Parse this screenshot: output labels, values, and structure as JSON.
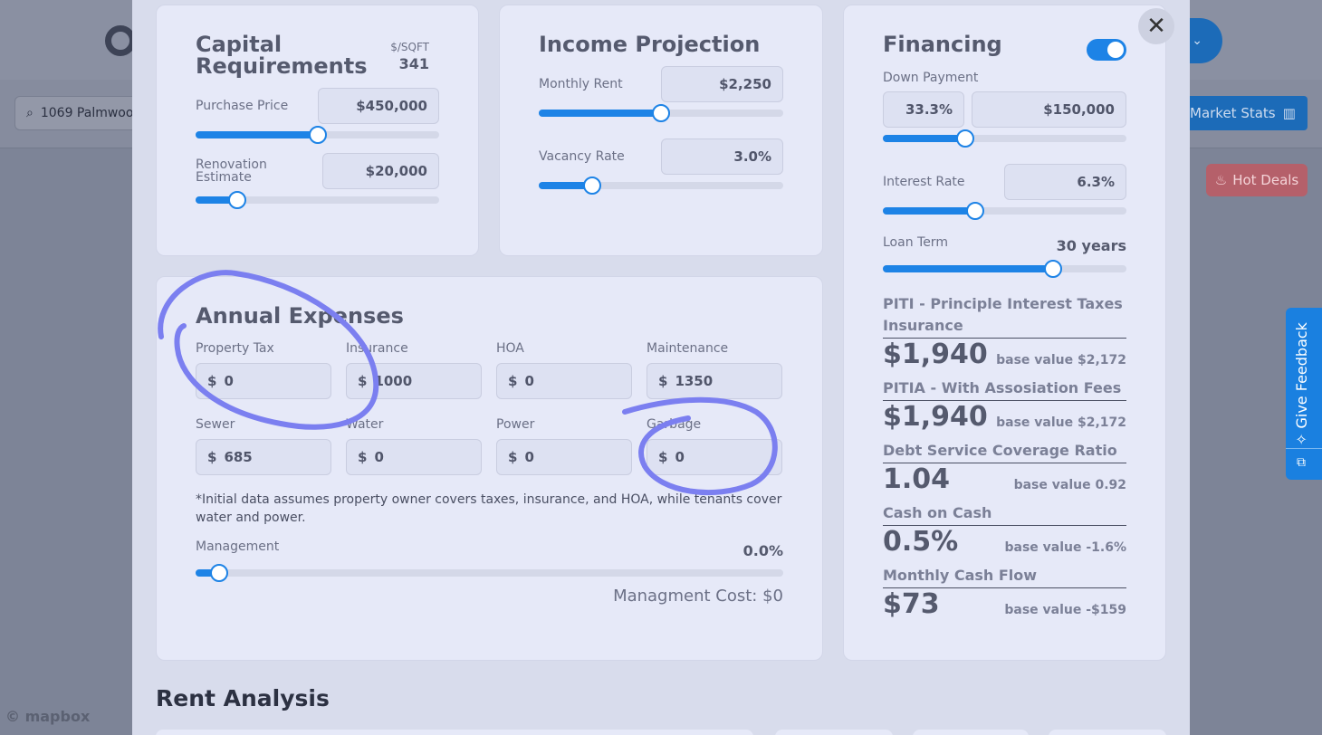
{
  "background": {
    "search_value": "1069 Palmwoo",
    "market_stats_label": "Market Stats",
    "hot_deals_label": "Hot Deals",
    "mapbox_label": "mapbox",
    "feedback_label": "Give Feedback"
  },
  "capital": {
    "title": "Capital Requirements",
    "sqft_label": "$/SQFT",
    "sqft_value": "341",
    "purchase_label": "Purchase Price",
    "purchase_value": "$450,000",
    "purchase_slider": 0.5,
    "renovation_label": "Renovation Estimate",
    "renovation_value": "$20,000",
    "renovation_slider": 0.17
  },
  "income": {
    "title": "Income Projection",
    "rent_label": "Monthly Rent",
    "rent_value": "$2,250",
    "rent_slider": 0.5,
    "vacancy_label": "Vacancy Rate",
    "vacancy_value": "3.0%",
    "vacancy_slider": 0.22
  },
  "expenses": {
    "title": "Annual Expenses",
    "fields": [
      {
        "label": "Property Tax",
        "value": "0"
      },
      {
        "label": "Insurance",
        "value": "1000"
      },
      {
        "label": "HOA",
        "value": "0"
      },
      {
        "label": "Maintenance",
        "value": "1350"
      },
      {
        "label": "Sewer",
        "value": "685"
      },
      {
        "label": "Water",
        "value": "0"
      },
      {
        "label": "Power",
        "value": "0"
      },
      {
        "label": "Garbage",
        "value": "0"
      }
    ],
    "currency_symbol": "$",
    "note": "*Initial data assumes property owner covers taxes, insurance, and HOA, while tenants cover water and power.",
    "management_label": "Management",
    "management_value": "0.0%",
    "management_slider": 0.04,
    "management_cost": "Managment Cost: $0"
  },
  "financing": {
    "title": "Financing",
    "toggle_on": true,
    "down_label": "Down Payment",
    "down_percent": "33.3%",
    "down_value": "$150,000",
    "down_slider": 0.34,
    "interest_label": "Interest Rate",
    "interest_value": "6.3%",
    "interest_slider": 0.38,
    "term_label": "Loan Term",
    "term_value": "30 years",
    "term_slider": 0.7,
    "metrics": [
      {
        "title": "PITI - Principle Interest Taxes Insurance",
        "value": "$1,940",
        "base": "base value $2,172"
      },
      {
        "title": "PITIA - With Assosiation Fees",
        "value": "$1,940",
        "base": "base value $2,172"
      },
      {
        "title": "Debt Service Coverage Ratio",
        "value": "1.04",
        "base": "base value 0.92"
      },
      {
        "title": "Cash on Cash",
        "value": "0.5%",
        "base": "base value -1.6%"
      },
      {
        "title": "Monthly Cash Flow",
        "value": "$73",
        "base": "base value -$159"
      }
    ]
  },
  "rent_analysis_title": "Rent Analysis",
  "colors": {
    "accent": "#1d83e6",
    "scribble": "#7b7ff0"
  }
}
